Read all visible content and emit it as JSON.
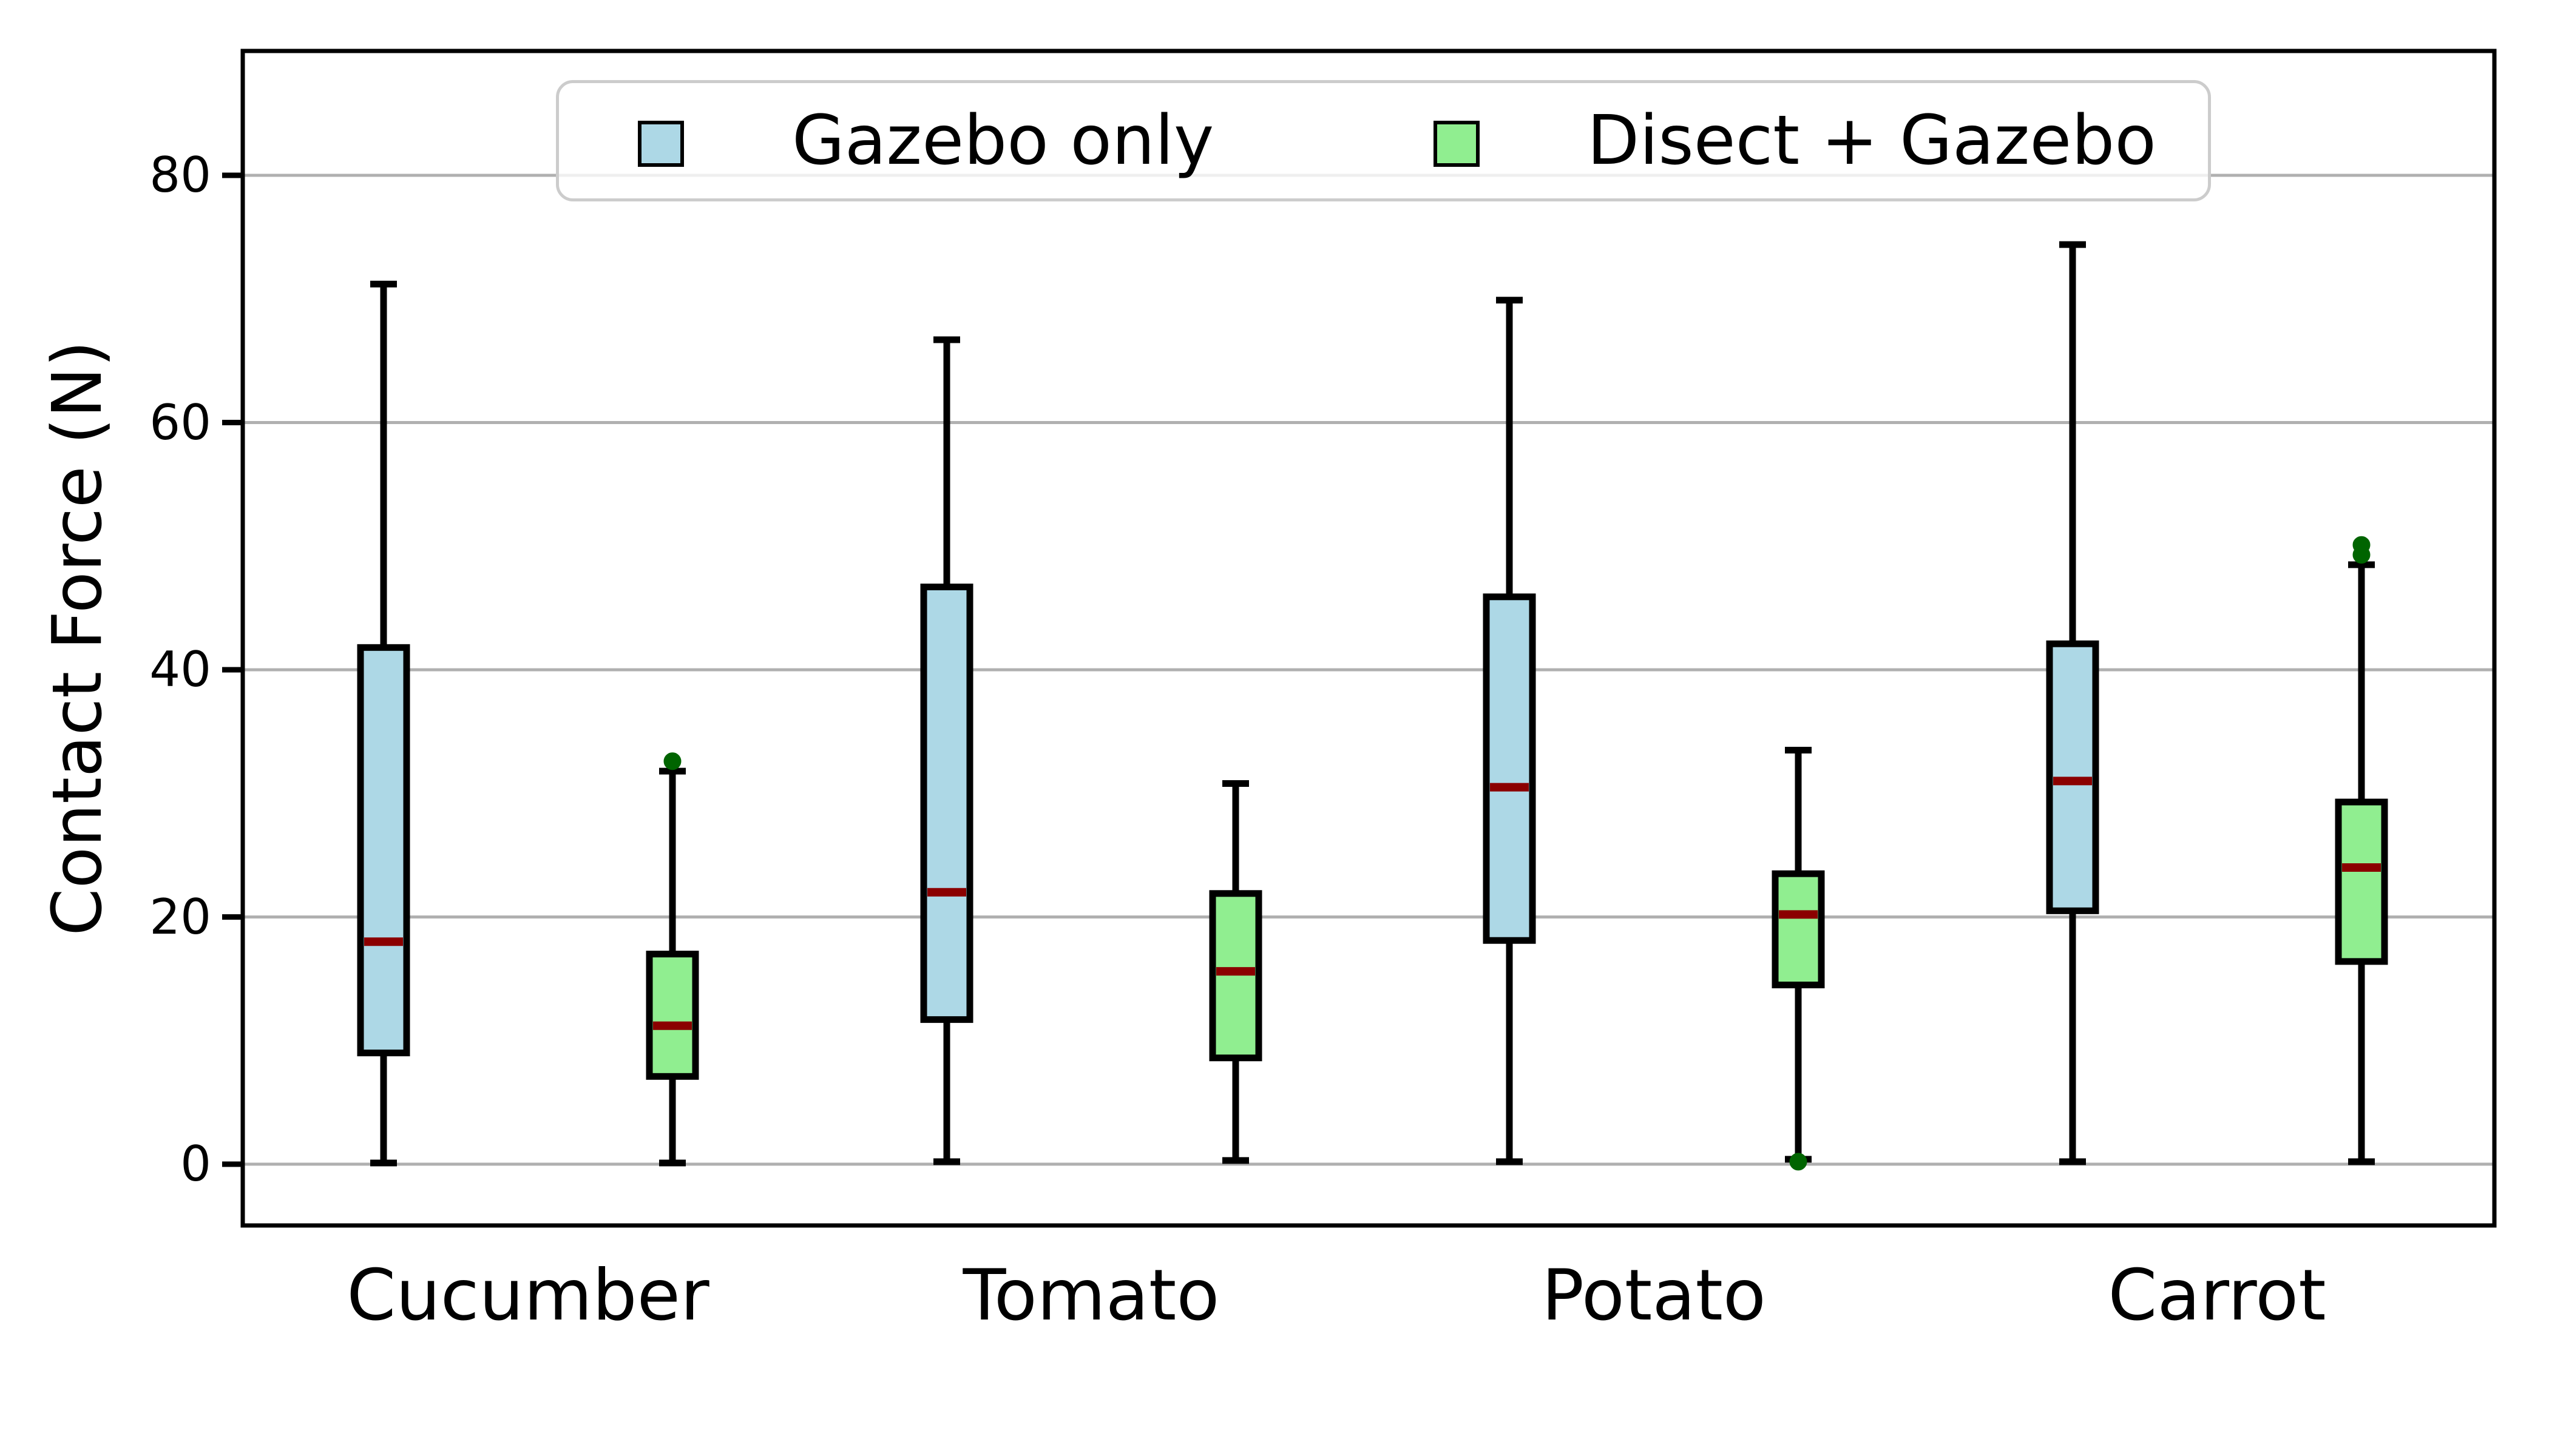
{
  "figure": {
    "kind": "grouped-boxplot"
  },
  "chart_data": {
    "type": "boxplot",
    "title": "",
    "xlabel": "",
    "ylabel": "Contact Force (N)",
    "categories": [
      "Cucumber",
      "Tomato",
      "Potato",
      "Carrot"
    ],
    "yticks": [
      0,
      20,
      40,
      60,
      80
    ],
    "ylim": [
      -5,
      90
    ],
    "grid": "horizontal",
    "legend_position": "upper center",
    "series": [
      {
        "name": "Gazebo only",
        "fill": "#ADD8E6",
        "boxes": [
          {
            "whislo": 0.1,
            "q1": 9.0,
            "med": 18.0,
            "q3": 41.8,
            "whishi": 71.2,
            "fliers": []
          },
          {
            "whislo": 0.2,
            "q1": 11.7,
            "med": 22.0,
            "q3": 46.7,
            "whishi": 66.7,
            "fliers": []
          },
          {
            "whislo": 0.2,
            "q1": 18.1,
            "med": 30.5,
            "q3": 45.9,
            "whishi": 69.9,
            "fliers": []
          },
          {
            "whislo": 0.2,
            "q1": 20.5,
            "med": 31.0,
            "q3": 42.1,
            "whishi": 74.4,
            "fliers": []
          }
        ]
      },
      {
        "name": "Disect + Gazebo",
        "fill": "#90EE90",
        "boxes": [
          {
            "whislo": 0.1,
            "q1": 7.1,
            "med": 11.2,
            "q3": 17.0,
            "whishi": 31.8,
            "fliers": [
              32.6
            ]
          },
          {
            "whislo": 0.3,
            "q1": 8.6,
            "med": 15.6,
            "q3": 21.9,
            "whishi": 30.8,
            "fliers": []
          },
          {
            "whislo": 0.4,
            "q1": 14.5,
            "med": 20.2,
            "q3": 23.5,
            "whishi": 33.5,
            "fliers": [
              0.2
            ]
          },
          {
            "whislo": 0.2,
            "q1": 16.4,
            "med": 24.0,
            "q3": 29.3,
            "whishi": 48.5,
            "fliers": [
              49.3,
              50.1
            ]
          }
        ]
      }
    ],
    "style": {
      "median_color": "#8B0000",
      "flier_color": "#006400",
      "box_edge_color": "#000000",
      "grid_color": "#b0b0b0",
      "spine_color": "#000000",
      "legend_border_color": "#cccccc",
      "legend_background": "rgba(255,255,255,0.8)"
    }
  }
}
